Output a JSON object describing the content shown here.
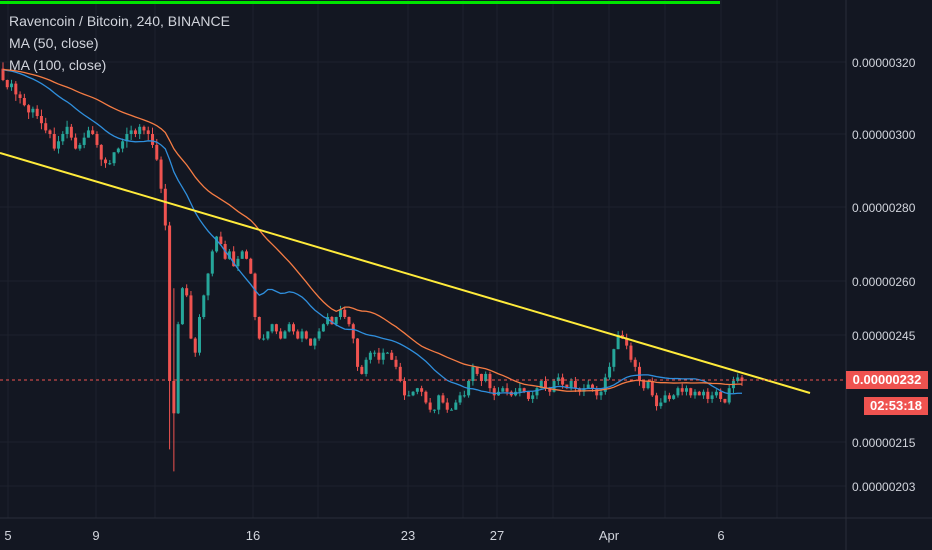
{
  "header": {
    "symbol_line": "Ravencoin / Bitcoin, 240, BINANCE",
    "ma50_label": "MA (50, close)",
    "ma100_label": "MA (100, close)"
  },
  "current_price": "0.00000232",
  "countdown": "02:53:18",
  "colors": {
    "background": "#131722",
    "grid": "#1e222d",
    "up": "#26a69a",
    "down": "#ef5350",
    "ma50": "#2f8fdd",
    "ma100": "#f57c44",
    "trendline": "#ffeb3b",
    "top_bar": "#00e600"
  },
  "chart_data": {
    "type": "candlestick",
    "y_ticks": [
      "0.00000320",
      "0.00000300",
      "0.00000280",
      "0.00000260",
      "0.00000245",
      "0.00000232",
      "0.00000215",
      "0.00000203"
    ],
    "x_ticks": [
      "5",
      "9",
      "16",
      "23",
      "27",
      "Apr",
      "6"
    ],
    "price_line": 2.32e-06,
    "trendline": {
      "from": {
        "x": "Mar 4",
        "y": 2.96e-06
      },
      "to": {
        "x": "Apr 8",
        "y": 2.29e-06
      }
    },
    "series_closes": [
      3.15e-06,
      3.13e-06,
      3.14e-06,
      3.11e-06,
      3.1e-06,
      3.08e-06,
      3.06e-06,
      3.07e-06,
      3.05e-06,
      3.03e-06,
      3.01e-06,
      3e-06,
      2.96e-06,
      2.98e-06,
      3e-06,
      3.02e-06,
      2.99e-06,
      2.96e-06,
      2.97e-06,
      2.99e-06,
      3.01e-06,
      3e-06,
      2.97e-06,
      2.93e-06,
      2.92e-06,
      2.92e-06,
      2.95e-06,
      2.96e-06,
      2.98e-06,
      3e-06,
      3.01e-06,
      3e-06,
      3.02e-06,
      3.01e-06,
      3e-06,
      2.97e-06,
      2.93e-06,
      2.85e-06,
      2.75e-06,
      2.32e-06,
      2.23e-06,
      2.48e-06,
      2.58e-06,
      2.56e-06,
      2.44e-06,
      2.4e-06,
      2.5e-06,
      2.56e-06,
      2.62e-06,
      2.68e-06,
      2.72e-06,
      2.7e-06,
      2.66e-06,
      2.68e-06,
      2.64e-06,
      2.66e-06,
      2.68e-06,
      2.66e-06,
      2.62e-06,
      2.5e-06,
      2.44e-06,
      2.44e-06,
      2.46e-06,
      2.48e-06,
      2.46e-06,
      2.44e-06,
      2.46e-06,
      2.48e-06,
      2.46e-06,
      2.44e-06,
      2.46e-06,
      2.44e-06,
      2.42e-06,
      2.44e-06,
      2.46e-06,
      2.48e-06,
      2.5e-06,
      2.48e-06,
      2.5e-06,
      2.52e-06,
      2.5e-06,
      2.48e-06,
      2.44e-06,
      2.36e-06,
      2.34e-06,
      2.38e-06,
      2.4e-06,
      2.4e-06,
      2.38e-06,
      2.4e-06,
      2.4e-06,
      2.38e-06,
      2.36e-06,
      2.32e-06,
      2.28e-06,
      2.28e-06,
      2.29e-06,
      2.3e-06,
      2.29e-06,
      2.26e-06,
      2.24e-06,
      2.24e-06,
      2.28e-06,
      2.26e-06,
      2.24e-06,
      2.24e-06,
      2.26e-06,
      2.28e-06,
      2.28e-06,
      2.32e-06,
      2.36e-06,
      2.34e-06,
      2.32e-06,
      2.34e-06,
      2.3e-06,
      2.28e-06,
      2.29e-06,
      2.3e-06,
      2.29e-06,
      2.28e-06,
      2.29e-06,
      2.3e-06,
      2.29e-06,
      2.27e-06,
      2.28e-06,
      2.3e-06,
      2.32e-06,
      2.3e-06,
      2.29e-06,
      2.32e-06,
      2.33e-06,
      2.31e-06,
      2.3e-06,
      2.32e-06,
      2.3e-06,
      2.29e-06,
      2.3e-06,
      2.31e-06,
      2.3e-06,
      2.28e-06,
      2.29e-06,
      2.33e-06,
      2.36e-06,
      2.41e-06,
      2.45e-06,
      2.44e-06,
      2.42e-06,
      2.38e-06,
      2.36e-06,
      2.32e-06,
      2.3e-06,
      2.32e-06,
      2.28e-06,
      2.25e-06,
      2.26e-06,
      2.28e-06,
      2.27e-06,
      2.28e-06,
      2.3e-06,
      2.29e-06,
      2.3e-06,
      2.28e-06,
      2.29e-06,
      2.28e-06,
      2.29e-06,
      2.27e-06,
      2.28e-06,
      2.29e-06,
      2.27e-06,
      2.26e-06,
      2.3e-06,
      2.32e-06,
      2.33e-06,
      2.32e-06
    ]
  }
}
